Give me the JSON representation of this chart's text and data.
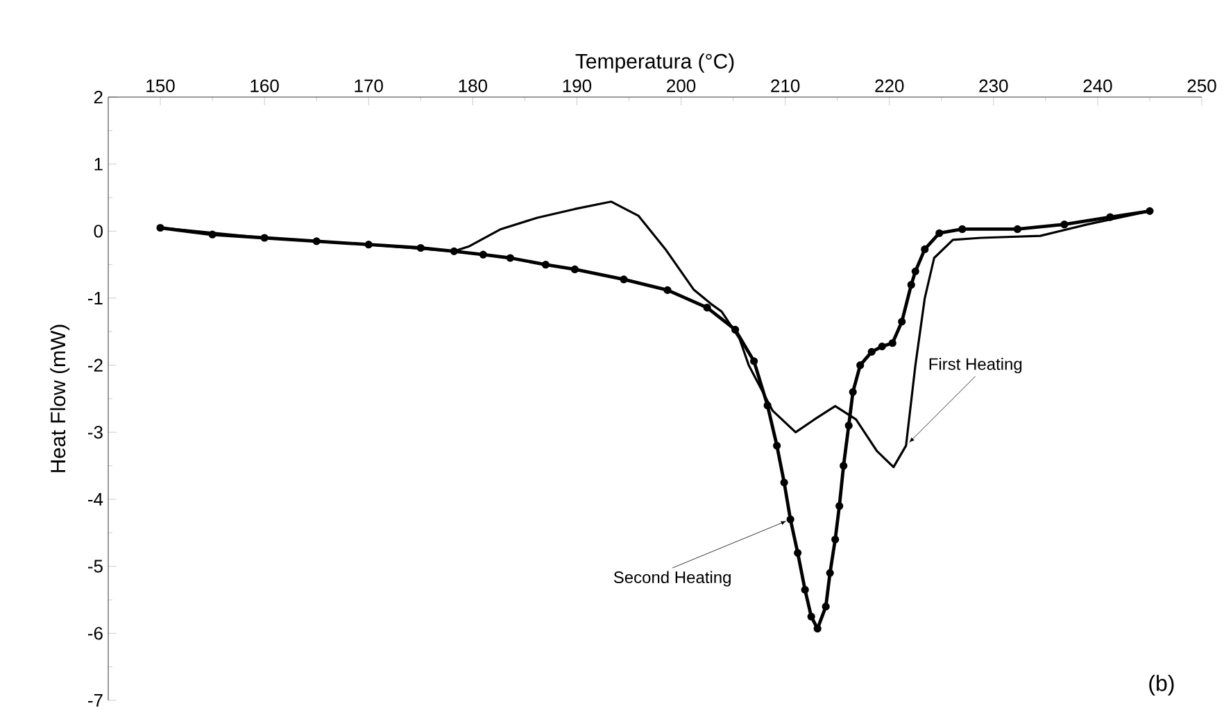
{
  "chart_data": {
    "type": "line",
    "xlabel": "Temperatura (°C)",
    "ylabel": "Heat Flow (mW)",
    "xlim": [
      145,
      250
    ],
    "ylim": [
      -7,
      2
    ],
    "xticks": [
      150,
      160,
      170,
      180,
      190,
      200,
      210,
      220,
      230,
      240,
      250
    ],
    "yticks": [
      -7,
      -6,
      -5,
      -4,
      -3,
      -2,
      -1,
      0,
      1,
      2
    ],
    "grid": false,
    "line_style": "solid",
    "series": [
      {
        "color": "#000000",
        "marker": "none",
        "x": [
          150,
          160,
          170,
          178.2,
          179.6,
          182.7,
          186.2,
          189.8,
          193.3,
          195.9,
          198.5,
          201.2,
          203,
          203.9,
          205.6,
          206.5,
          208.8,
          211,
          212.8,
          214.8,
          216.8,
          218.8,
          220.4,
          221.6,
          222.5,
          223.4,
          224.3,
          226.1,
          228.8,
          234.5,
          239,
          245
        ],
        "values": [
          0.05,
          -0.1,
          -0.2,
          -0.3,
          -0.23,
          0.03,
          0.2,
          0.33,
          0.44,
          0.23,
          -0.27,
          -0.87,
          -1.1,
          -1.2,
          -1.6,
          -2.0,
          -2.68,
          -3.0,
          -2.81,
          -2.61,
          -2.81,
          -3.28,
          -3.52,
          -3.2,
          -2.0,
          -1.0,
          -0.4,
          -0.13,
          -0.1,
          -0.07,
          0.1,
          0.3
        ]
      },
      {
        "color": "#000000",
        "marker": "circle",
        "x": [
          150,
          155,
          160,
          165,
          170,
          175,
          178.2,
          181,
          183.6,
          187,
          189.8,
          194.5,
          198.7,
          202.5,
          205.2,
          207,
          208.3,
          209.2,
          209.9,
          210.5,
          211.2,
          211.9,
          212.5,
          213.1,
          213.9,
          214.3,
          214.8,
          215.2,
          215.6,
          216.1,
          216.5,
          217.2,
          218.3,
          219.3,
          220.3,
          221.2,
          222.1,
          222.5,
          223.4,
          224.8,
          227,
          232.3,
          236.8,
          241.2,
          245
        ],
        "values": [
          0.05,
          -0.05,
          -0.1,
          -0.15,
          -0.2,
          -0.25,
          -0.3,
          -0.35,
          -0.4,
          -0.5,
          -0.57,
          -0.72,
          -0.88,
          -1.14,
          -1.47,
          -1.94,
          -2.6,
          -3.2,
          -3.75,
          -4.3,
          -4.8,
          -5.35,
          -5.75,
          -5.93,
          -5.6,
          -5.1,
          -4.6,
          -4.1,
          -3.5,
          -2.9,
          -2.4,
          -2.0,
          -1.8,
          -1.72,
          -1.67,
          -1.35,
          -0.8,
          -0.6,
          -0.27,
          -0.03,
          0.03,
          0.03,
          0.1,
          0.21,
          0.3
        ]
      }
    ],
    "annotations": [
      {
        "text": "First Heating",
        "x": 221.6,
        "y": -3.2
      },
      {
        "text": "Second Heating",
        "x": 210.5,
        "y": -4.3
      },
      "(b)"
    ]
  }
}
